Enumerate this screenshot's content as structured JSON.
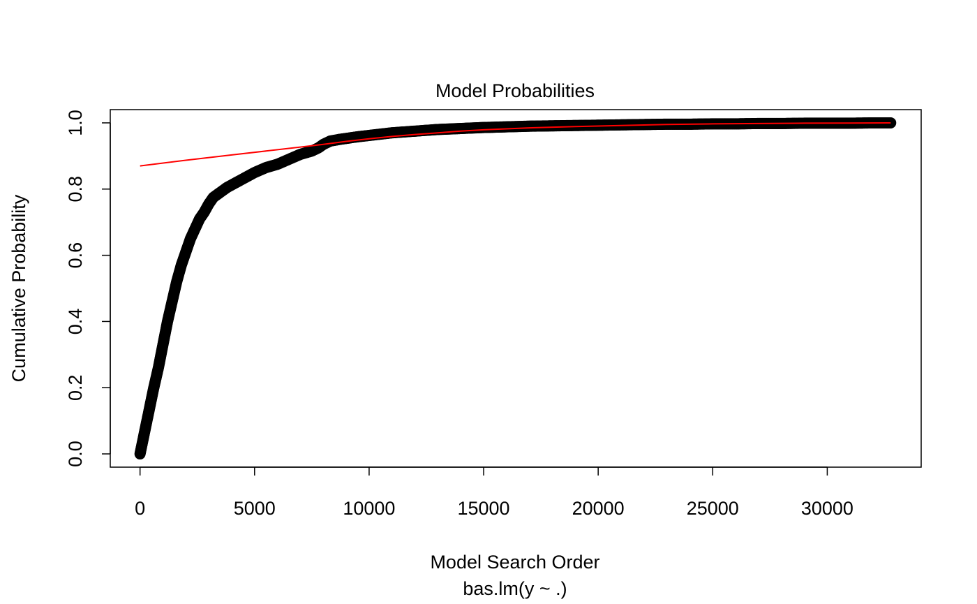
{
  "chart_data": {
    "type": "line",
    "title": "Model Probabilities",
    "xlabel": "Model Search Order",
    "subtitle": "bas.lm(y ~ .)",
    "ylabel": "Cumulative Probability",
    "xlim": [
      -1300,
      34100
    ],
    "ylim": [
      -0.04,
      1.04
    ],
    "x_ticks": [
      0,
      5000,
      10000,
      15000,
      20000,
      25000,
      30000
    ],
    "x_tick_labels": [
      "0",
      "5000",
      "10000",
      "15000",
      "20000",
      "25000",
      "30000"
    ],
    "y_ticks": [
      0.0,
      0.2,
      0.4,
      0.6,
      0.8,
      1.0
    ],
    "y_tick_labels": [
      "0.0",
      "0.2",
      "0.4",
      "0.6",
      "0.8",
      "1.0"
    ],
    "grid": false,
    "series": [
      {
        "style": "points",
        "color": "#000000",
        "x": [
          0,
          150,
          300,
          450,
          600,
          800,
          1000,
          1200,
          1400,
          1600,
          1800,
          2000,
          2200,
          2400,
          2600,
          2800,
          3000,
          3200,
          3500,
          3800,
          4200,
          4600,
          5000,
          5500,
          6000,
          6500,
          7000,
          7500,
          7800,
          8000,
          8300,
          8700,
          9000,
          9500,
          10000,
          11000,
          12000,
          13000,
          14000,
          15000,
          16000,
          17000,
          18000,
          19000,
          20000,
          21000,
          22000,
          23000,
          24000,
          25000,
          26000,
          27000,
          28000,
          29000,
          30000,
          31000,
          32000,
          32768
        ],
        "y": [
          0.0,
          0.05,
          0.1,
          0.15,
          0.2,
          0.26,
          0.33,
          0.4,
          0.46,
          0.52,
          0.57,
          0.61,
          0.65,
          0.68,
          0.71,
          0.73,
          0.755,
          0.775,
          0.79,
          0.805,
          0.82,
          0.835,
          0.85,
          0.865,
          0.875,
          0.89,
          0.905,
          0.915,
          0.925,
          0.935,
          0.945,
          0.95,
          0.953,
          0.958,
          0.962,
          0.97,
          0.975,
          0.98,
          0.983,
          0.986,
          0.988,
          0.99,
          0.991,
          0.992,
          0.993,
          0.994,
          0.995,
          0.996,
          0.996,
          0.997,
          0.997,
          0.998,
          0.998,
          0.999,
          0.999,
          0.999,
          1.0,
          1.0
        ]
      },
      {
        "style": "line",
        "color": "#ff0000",
        "x": [
          0,
          2000,
          4000,
          6000,
          7000,
          8000,
          9000,
          10000,
          11000,
          12000,
          13000,
          14000,
          15000,
          17000,
          19000,
          21000,
          23000,
          25000,
          27000,
          29000,
          31000,
          32768
        ],
        "y": [
          0.87,
          0.887,
          0.903,
          0.919,
          0.927,
          0.935,
          0.944,
          0.952,
          0.959,
          0.965,
          0.97,
          0.975,
          0.979,
          0.985,
          0.989,
          0.992,
          0.995,
          0.997,
          0.998,
          0.999,
          0.9995,
          1.0
        ]
      }
    ]
  }
}
